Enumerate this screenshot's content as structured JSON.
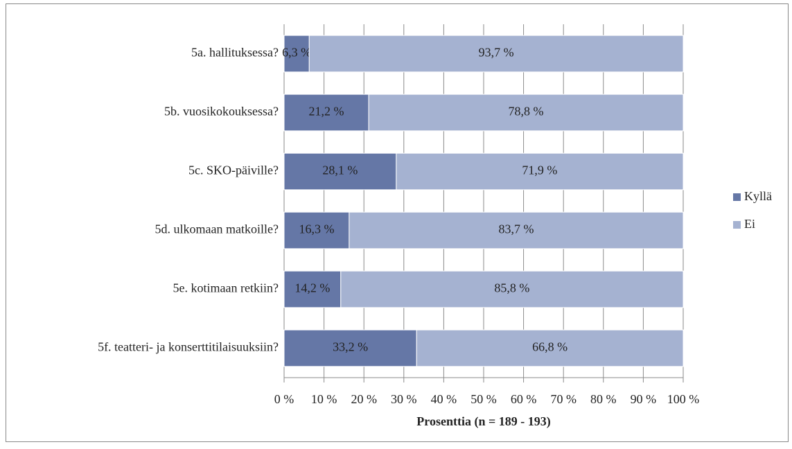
{
  "chart_data": {
    "type": "stacked-barh",
    "xlabel": "Prosenttia (n = 189 - 193)",
    "categories": [
      "5a. hallituksessa?",
      "5b. vuosikokouksessa?",
      "5c. SKO-päiville?",
      "5d. ulkomaan matkoille?",
      "5e. kotimaan retkiin?",
      "5f. teatteri- ja konserttitilaisuuksiin?"
    ],
    "series": [
      {
        "name": "Kyllä",
        "color": "#6577a6",
        "values": [
          6.3,
          21.2,
          28.1,
          16.3,
          14.2,
          33.2
        ],
        "value_labels": [
          "6,3 %",
          "21,2 %",
          "28,1 %",
          "16,3 %",
          "14,2 %",
          "33,2 %"
        ]
      },
      {
        "name": "Ei",
        "color": "#a5b2d1",
        "values": [
          93.7,
          78.8,
          71.9,
          83.7,
          85.8,
          66.8
        ],
        "value_labels": [
          "93,7 %",
          "78,8 %",
          "71,9 %",
          "83,7 %",
          "85,8 %",
          "66,8 %"
        ]
      }
    ],
    "xlim": [
      0,
      100
    ],
    "xticks": [
      {
        "value": 0,
        "label": "0 %"
      },
      {
        "value": 10,
        "label": "10 %"
      },
      {
        "value": 20,
        "label": "20 %"
      },
      {
        "value": 30,
        "label": "30 %"
      },
      {
        "value": 40,
        "label": "40 %"
      },
      {
        "value": 50,
        "label": "50 %"
      },
      {
        "value": 60,
        "label": "60 %"
      },
      {
        "value": 70,
        "label": "70 %"
      },
      {
        "value": 80,
        "label": "80 %"
      },
      {
        "value": 90,
        "label": "90 %"
      },
      {
        "value": 100,
        "label": "100 %"
      }
    ],
    "grid": true,
    "legend": "right"
  }
}
